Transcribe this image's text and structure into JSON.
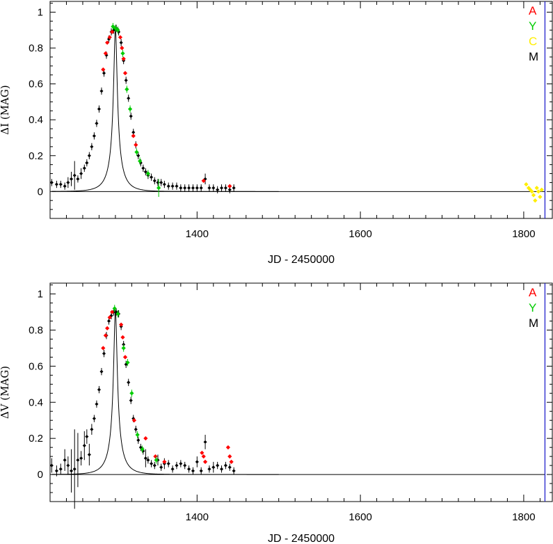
{
  "chart_data": [
    {
      "type": "scatter",
      "xlabel": "JD - 2450000",
      "ylabel": "ΔI (MAG)",
      "xlim": [
        1220,
        1835
      ],
      "ylim": [
        -0.15,
        1.06
      ],
      "xticks": [
        1400,
        1600,
        1800
      ],
      "yticks": [
        0,
        0.2,
        0.4,
        0.6,
        0.8,
        1
      ],
      "ytick_labels": [
        "0",
        "0.2",
        "0.4",
        "0.6",
        "0.8",
        "1"
      ],
      "xtick_labels": [
        "1400",
        "1600",
        "1800"
      ],
      "baseline": 0,
      "vline_x": 1826,
      "vline_color": "#2222cc",
      "legend_position": "top-right, outside plot",
      "legend": [
        {
          "label": "A",
          "color": "#ff0000"
        },
        {
          "label": "Y",
          "color": "#00cc00"
        },
        {
          "label": "C",
          "color": "#ffee00"
        },
        {
          "label": "M",
          "color": "#000000"
        }
      ],
      "fit_curve": {
        "t0": 1300,
        "u0": 0.118,
        "tE": 18,
        "scale": 0.91,
        "x_range": [
          1222,
          1826
        ]
      },
      "series": [
        {
          "name": "M",
          "color": "#000000",
          "x": [
            1222,
            1228,
            1233,
            1238,
            1242,
            1246,
            1250,
            1254,
            1258,
            1262,
            1265,
            1268,
            1271,
            1274,
            1277,
            1280,
            1283,
            1286,
            1289,
            1292,
            1295,
            1298,
            1301,
            1304,
            1307,
            1310,
            1313,
            1316,
            1319,
            1322,
            1325,
            1328,
            1331,
            1334,
            1337,
            1340,
            1344,
            1348,
            1352,
            1356,
            1360,
            1365,
            1370,
            1375,
            1380,
            1385,
            1390,
            1395,
            1400,
            1405,
            1410,
            1415,
            1420,
            1425,
            1430,
            1435,
            1440,
            1445
          ],
          "y": [
            0.05,
            0.04,
            0.04,
            0.03,
            0.05,
            0.07,
            0.09,
            0.07,
            0.1,
            0.13,
            0.16,
            0.2,
            0.25,
            0.31,
            0.38,
            0.46,
            0.56,
            0.66,
            0.76,
            0.85,
            0.89,
            0.9,
            0.91,
            0.89,
            0.83,
            0.73,
            0.62,
            0.52,
            0.42,
            0.33,
            0.26,
            0.2,
            0.16,
            0.13,
            0.11,
            0.09,
            0.08,
            0.06,
            0.05,
            0.05,
            0.04,
            0.03,
            0.03,
            0.03,
            0.02,
            0.02,
            0.02,
            0.02,
            0.02,
            0.02,
            0.07,
            0.02,
            0.02,
            0.01,
            0.02,
            0.02,
            0.01,
            0.02
          ],
          "err": [
            0.02,
            0.02,
            0.02,
            0.02,
            0.03,
            0.04,
            0.08,
            0.02,
            0.03,
            0.02,
            0.02,
            0.02,
            0.02,
            0.02,
            0.02,
            0.02,
            0.02,
            0.02,
            0.02,
            0.02,
            0.02,
            0.02,
            0.02,
            0.02,
            0.02,
            0.02,
            0.02,
            0.02,
            0.02,
            0.02,
            0.02,
            0.02,
            0.02,
            0.02,
            0.02,
            0.02,
            0.02,
            0.02,
            0.02,
            0.02,
            0.02,
            0.02,
            0.02,
            0.02,
            0.02,
            0.02,
            0.02,
            0.02,
            0.02,
            0.02,
            0.03,
            0.02,
            0.02,
            0.02,
            0.02,
            0.02,
            0.02,
            0.02
          ]
        },
        {
          "name": "A",
          "color": "#ff0000",
          "x": [
            1285,
            1288,
            1290,
            1293,
            1296,
            1306,
            1308,
            1310,
            1312,
            1322,
            1325,
            1408,
            1440
          ],
          "y": [
            0.68,
            0.77,
            0.83,
            0.86,
            0.89,
            0.86,
            0.8,
            0.74,
            0.66,
            0.31,
            0.26,
            0.06,
            0.03
          ]
        },
        {
          "name": "Y",
          "color": "#00cc00",
          "x": [
            1297,
            1300,
            1303,
            1309,
            1314,
            1318,
            1326,
            1330,
            1340,
            1353
          ],
          "y": [
            0.92,
            0.91,
            0.9,
            0.77,
            0.57,
            0.46,
            0.22,
            0.17,
            0.1,
            0.02
          ],
          "err": [
            0.02,
            0.02,
            0.02,
            0.02,
            0.02,
            0.02,
            0.02,
            0.02,
            0.02,
            0.05
          ]
        },
        {
          "name": "C",
          "color": "#ffee00",
          "x": [
            1803,
            1806,
            1808,
            1810,
            1812,
            1814,
            1816,
            1818,
            1820,
            1822
          ],
          "y": [
            0.04,
            0.02,
            0.01,
            0.0,
            -0.02,
            -0.05,
            0.02,
            0.0,
            -0.03,
            0.01
          ]
        }
      ]
    },
    {
      "type": "scatter",
      "xlabel": "JD - 2450000",
      "ylabel": "ΔV (MAG)",
      "xlim": [
        1220,
        1835
      ],
      "ylim": [
        -0.15,
        1.06
      ],
      "xticks": [
        1400,
        1600,
        1800
      ],
      "yticks": [
        0,
        0.2,
        0.4,
        0.6,
        0.8,
        1
      ],
      "ytick_labels": [
        "0",
        "0.2",
        "0.4",
        "0.6",
        "0.8",
        "1"
      ],
      "xtick_labels": [
        "1400",
        "1600",
        "1800"
      ],
      "baseline": 0,
      "vline_x": 1826,
      "vline_color": "#2222cc",
      "legend_position": "top-right, outside plot",
      "legend": [
        {
          "label": "A",
          "color": "#ff0000"
        },
        {
          "label": "Y",
          "color": "#00cc00"
        },
        {
          "label": "M",
          "color": "#000000"
        }
      ],
      "fit_curve": {
        "t0": 1300,
        "u0": 0.118,
        "tE": 18,
        "scale": 0.91,
        "x_range": [
          1222,
          1826
        ]
      },
      "series": [
        {
          "name": "M",
          "color": "#000000",
          "x": [
            1222,
            1228,
            1233,
            1238,
            1242,
            1246,
            1250,
            1254,
            1258,
            1262,
            1265,
            1268,
            1271,
            1274,
            1277,
            1280,
            1283,
            1286,
            1289,
            1292,
            1295,
            1298,
            1301,
            1304,
            1307,
            1310,
            1313,
            1316,
            1319,
            1322,
            1325,
            1328,
            1331,
            1334,
            1337,
            1340,
            1344,
            1348,
            1352,
            1356,
            1360,
            1365,
            1370,
            1375,
            1380,
            1385,
            1390,
            1395,
            1400,
            1405,
            1410,
            1415,
            1420,
            1425,
            1430,
            1435,
            1440,
            1445
          ],
          "y": [
            0.05,
            0.02,
            0.03,
            0.08,
            0.05,
            0.02,
            0.03,
            0.08,
            0.09,
            0.16,
            0.21,
            0.11,
            0.25,
            0.31,
            0.39,
            0.47,
            0.57,
            0.67,
            0.77,
            0.85,
            0.88,
            0.9,
            0.9,
            0.89,
            0.82,
            0.72,
            0.61,
            0.51,
            0.41,
            0.31,
            0.25,
            0.19,
            0.15,
            0.13,
            0.09,
            0.08,
            0.06,
            0.05,
            0.08,
            0.04,
            0.06,
            0.06,
            0.03,
            0.05,
            0.06,
            0.05,
            0.03,
            0.02,
            0.07,
            0.02,
            0.18,
            0.03,
            0.04,
            0.05,
            0.03,
            0.05,
            0.04,
            0.02
          ],
          "err": [
            0.04,
            0.03,
            0.03,
            0.06,
            0.05,
            0.12,
            0.22,
            0.15,
            0.04,
            0.08,
            0.04,
            0.06,
            0.03,
            0.02,
            0.02,
            0.02,
            0.02,
            0.02,
            0.02,
            0.02,
            0.02,
            0.02,
            0.02,
            0.02,
            0.02,
            0.02,
            0.02,
            0.02,
            0.02,
            0.02,
            0.02,
            0.02,
            0.02,
            0.02,
            0.05,
            0.02,
            0.02,
            0.02,
            0.03,
            0.02,
            0.03,
            0.02,
            0.02,
            0.02,
            0.02,
            0.02,
            0.02,
            0.02,
            0.03,
            0.02,
            0.04,
            0.02,
            0.03,
            0.02,
            0.02,
            0.02,
            0.02,
            0.02
          ]
        },
        {
          "name": "A",
          "color": "#ff0000",
          "x": [
            1285,
            1288,
            1290,
            1293,
            1296,
            1307,
            1309,
            1312,
            1323,
            1337,
            1349,
            1360,
            1406,
            1408,
            1410,
            1438,
            1440,
            1442
          ],
          "y": [
            0.7,
            0.77,
            0.81,
            0.87,
            0.9,
            0.83,
            0.76,
            0.65,
            0.3,
            0.2,
            0.1,
            0.07,
            0.12,
            0.1,
            0.07,
            0.15,
            0.1,
            0.07
          ]
        },
        {
          "name": "Y",
          "color": "#00cc00",
          "x": [
            1299,
            1303,
            1310,
            1315,
            1320,
            1327,
            1333,
            1350
          ],
          "y": [
            0.92,
            0.89,
            0.7,
            0.62,
            0.45,
            0.22,
            0.14,
            0.08
          ],
          "err": [
            0.02,
            0.02,
            0.02,
            0.02,
            0.02,
            0.02,
            0.02,
            0.02
          ]
        }
      ]
    }
  ]
}
